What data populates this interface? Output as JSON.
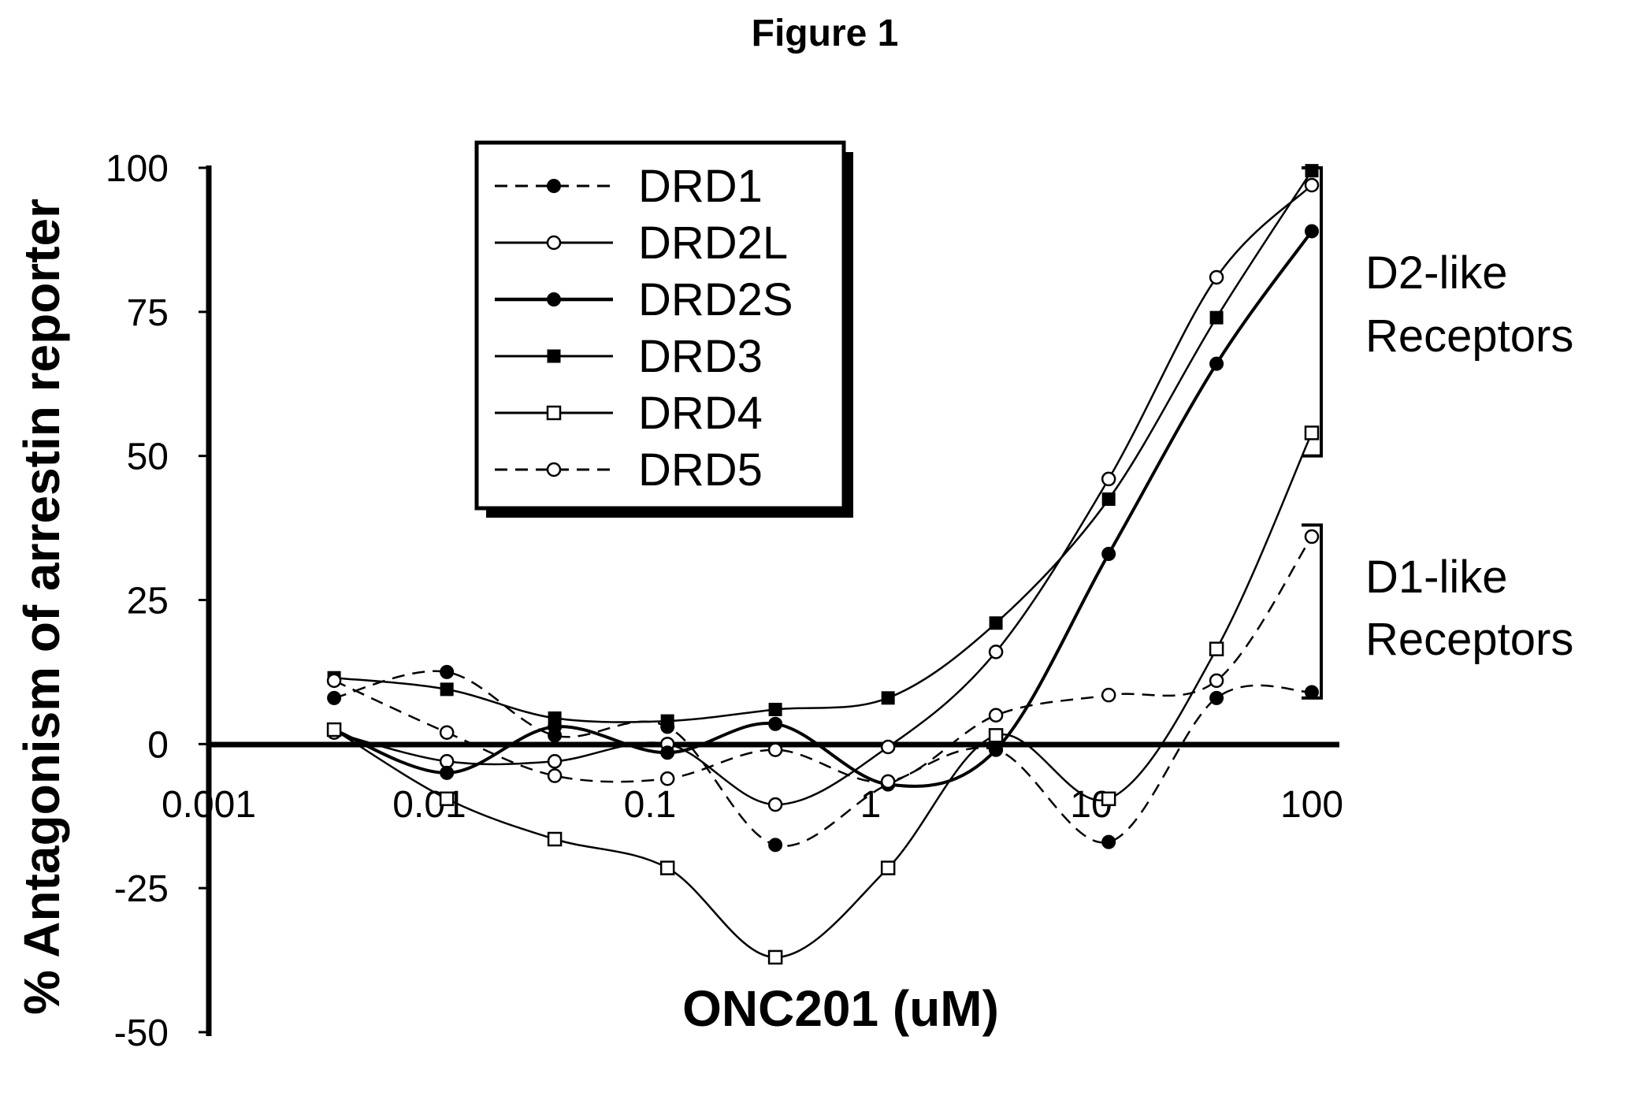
{
  "chart_data": {
    "type": "line",
    "title": "Figure 1",
    "xlabel": "ONC201 (uM)",
    "ylabel": "% Antagonism of arrestin reporter",
    "x_scale": "log",
    "xlim": [
      0.001,
      100
    ],
    "ylim": [
      -50,
      100
    ],
    "x_tick_labels": [
      "0.001",
      "0.01",
      "0.1",
      "1",
      "10",
      "100"
    ],
    "x_ticks": [
      0.001,
      0.01,
      0.1,
      1,
      10,
      100
    ],
    "y_tick_labels": [
      "100",
      "75",
      "50",
      "25",
      "0",
      "-25",
      "-50"
    ],
    "y_ticks": [
      100,
      75,
      50,
      25,
      0,
      -25,
      -50
    ],
    "grid": false,
    "legend_position": "top-center",
    "x": [
      0.0037,
      0.012,
      0.037,
      0.12,
      0.37,
      1.2,
      3.7,
      12,
      37,
      100
    ],
    "series": [
      {
        "name": "DRD1",
        "line": "dashed",
        "marker": "filled-circle",
        "values": [
          8,
          12.5,
          1.5,
          3,
          -17.5,
          -7,
          -1,
          -17,
          8,
          9
        ]
      },
      {
        "name": "DRD2L",
        "line": "solid-thin",
        "marker": "open-circle",
        "values": [
          2,
          -3,
          -3,
          0,
          -10.5,
          -0.5,
          16,
          46,
          81,
          97
        ]
      },
      {
        "name": "DRD2S",
        "line": "solid-thick",
        "marker": "filled-circle",
        "values": [
          2.5,
          -5,
          3,
          -1.5,
          3.5,
          -7,
          -1,
          33,
          66,
          89
        ]
      },
      {
        "name": "DRD3",
        "line": "solid-thin",
        "marker": "filled-square",
        "values": [
          11.5,
          9.5,
          4.5,
          4,
          6,
          8,
          21,
          42.5,
          74,
          99.5
        ]
      },
      {
        "name": "DRD4",
        "line": "solid-thin",
        "marker": "open-square",
        "values": [
          2.5,
          -9.5,
          -16.5,
          -21.5,
          -37,
          -21.5,
          1.5,
          -9.5,
          16.5,
          54
        ]
      },
      {
        "name": "DRD5",
        "line": "dashed",
        "marker": "open-circle",
        "values": [
          11,
          2,
          -5.5,
          -6,
          -1,
          -6.5,
          5,
          8.5,
          11,
          36
        ]
      }
    ],
    "group_labels": [
      {
        "line1": "D2-like",
        "line2": "Receptors",
        "range": [
          50,
          100
        ]
      },
      {
        "line1": "D1-like",
        "line2": "Receptors",
        "range": [
          8,
          38
        ]
      }
    ]
  }
}
